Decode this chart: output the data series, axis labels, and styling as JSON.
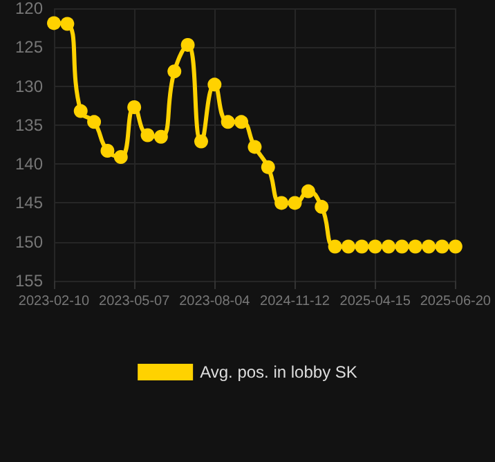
{
  "chart_data": {
    "type": "line",
    "categories": [
      "2023-02-10",
      null,
      null,
      null,
      null,
      null,
      "2023-05-07",
      null,
      null,
      null,
      null,
      null,
      "2023-08-04",
      null,
      null,
      null,
      null,
      null,
      "2024-11-12",
      null,
      null,
      null,
      null,
      null,
      "2025-04-15",
      null,
      null,
      null,
      null,
      null,
      "2025-06-20"
    ],
    "series": [
      {
        "name": "Avg. pos. in lobby SK",
        "color": "#ffd200",
        "values": [
          121.9,
          122,
          133.2,
          134.6,
          138.3,
          139.1,
          132.7,
          136.3,
          136.5,
          128.1,
          124.7,
          137.1,
          129.8,
          134.6,
          134.6,
          137.8,
          140.4,
          145,
          145,
          143.5,
          145.5,
          150.6,
          150.6,
          150.6,
          150.6,
          150.6,
          150.6,
          150.6,
          150.6,
          150.6,
          150.6
        ]
      }
    ],
    "ylim": [
      155,
      120
    ],
    "yticks": [
      120,
      125,
      130,
      135,
      140,
      145,
      150,
      155
    ],
    "grid": true,
    "legend": "bottom",
    "marker": "circle",
    "line_style": "solid"
  }
}
